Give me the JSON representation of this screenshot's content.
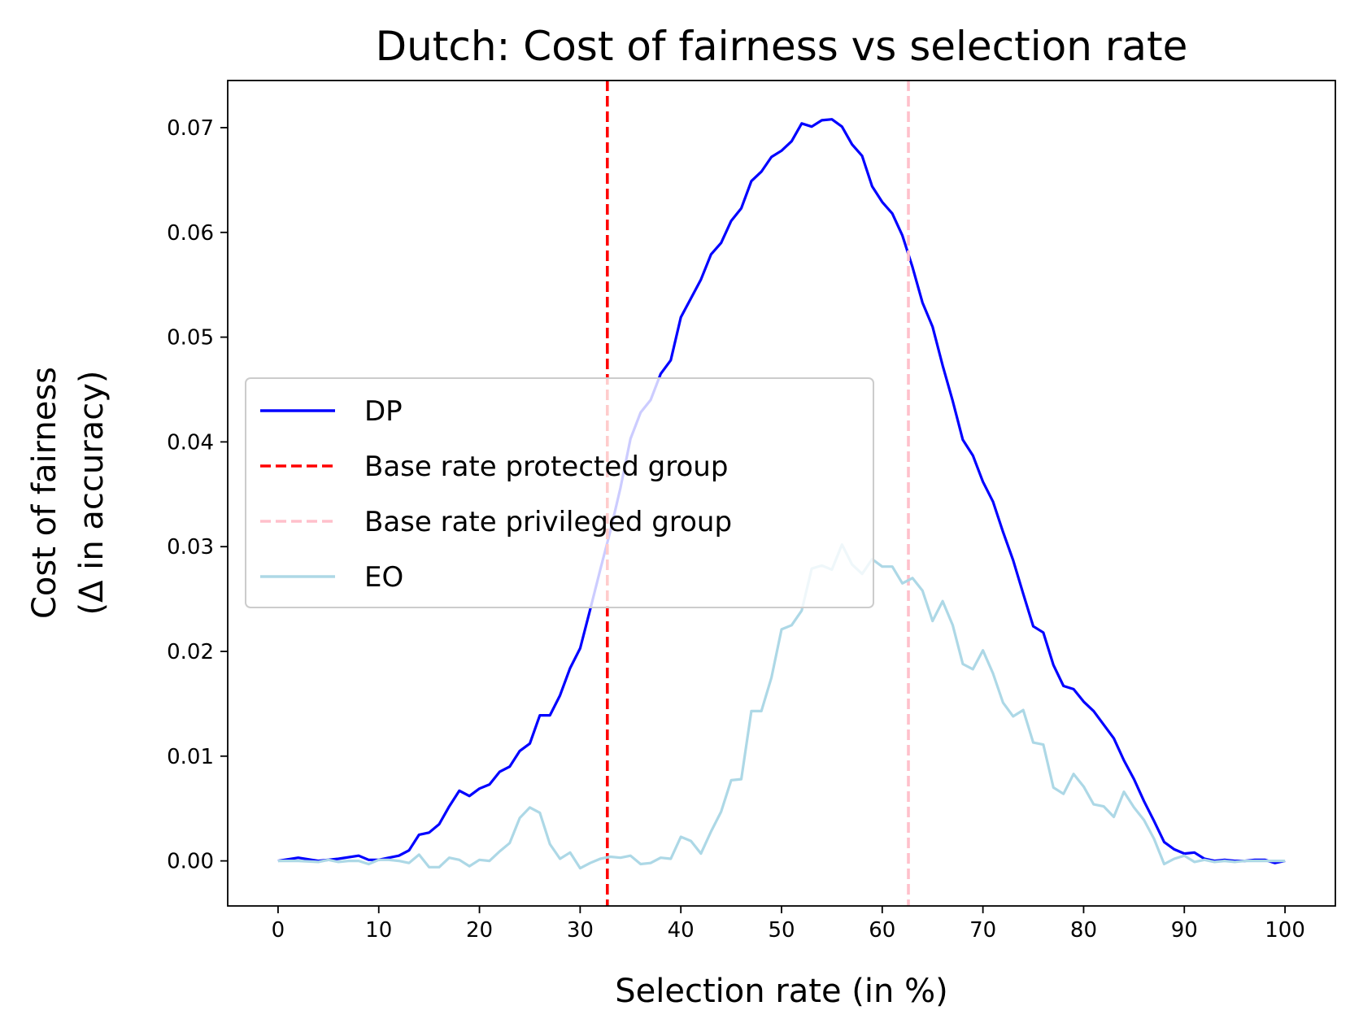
{
  "chart_data": {
    "type": "line",
    "title": "Dutch: Cost of fairness vs selection rate",
    "xlabel": "Selection rate (in %)",
    "ylabel_line1": "Cost of fairness",
    "ylabel_line2": "(Δ in accuracy)",
    "xlim": [
      -5,
      105
    ],
    "ylim": [
      -0.0043,
      0.0745
    ],
    "xticks": [
      0,
      10,
      20,
      30,
      40,
      50,
      60,
      70,
      80,
      90,
      100
    ],
    "xtick_labels": [
      "0",
      "10",
      "20",
      "30",
      "40",
      "50",
      "60",
      "70",
      "80",
      "90",
      "100"
    ],
    "yticks": [
      0.0,
      0.01,
      0.02,
      0.03,
      0.04,
      0.05,
      0.06,
      0.07
    ],
    "ytick_labels": [
      "0.00",
      "0.01",
      "0.02",
      "0.03",
      "0.04",
      "0.05",
      "0.06",
      "0.07"
    ],
    "legend_position": "center-left",
    "series": [
      {
        "name": "DP",
        "color": "#0000ff",
        "style": "solid",
        "x": [
          0,
          2,
          4,
          6,
          8,
          9,
          10,
          11,
          12,
          13,
          14,
          15,
          16,
          17,
          18,
          19,
          20,
          21,
          22,
          23,
          24,
          25,
          26,
          27,
          28,
          29,
          30,
          31,
          32,
          33,
          34,
          35,
          36,
          37,
          38,
          39,
          40,
          41,
          42,
          43,
          44,
          45,
          46,
          47,
          48,
          49,
          50,
          51,
          52,
          53,
          54,
          55,
          56,
          57,
          58,
          59,
          60,
          61,
          62,
          63,
          64,
          65,
          66,
          67,
          68,
          69,
          70,
          71,
          72,
          73,
          74,
          75,
          76,
          77,
          78,
          79,
          80,
          81,
          82,
          83,
          84,
          85,
          86,
          87,
          88,
          89,
          90,
          91,
          92,
          93,
          94,
          95,
          96,
          97,
          98,
          99,
          100
        ],
        "values": [
          0.0,
          0.0003,
          0.0,
          0.0002,
          0.0005,
          0.0001,
          0.0001,
          0.0003,
          0.0005,
          0.001,
          0.0025,
          0.0027,
          0.0035,
          0.0052,
          0.0067,
          0.0062,
          0.0069,
          0.0073,
          0.0085,
          0.009,
          0.0105,
          0.0112,
          0.0139,
          0.0139,
          0.0158,
          0.0184,
          0.0203,
          0.024,
          0.0278,
          0.0315,
          0.0356,
          0.0403,
          0.0428,
          0.044,
          0.0465,
          0.0478,
          0.0519,
          0.0537,
          0.0555,
          0.0579,
          0.059,
          0.0611,
          0.0623,
          0.0649,
          0.0658,
          0.0672,
          0.0678,
          0.0687,
          0.0704,
          0.0701,
          0.0707,
          0.0708,
          0.0701,
          0.0684,
          0.0673,
          0.0644,
          0.0629,
          0.0618,
          0.0597,
          0.0567,
          0.0533,
          0.051,
          0.0473,
          0.0439,
          0.0402,
          0.0387,
          0.0362,
          0.0343,
          0.0314,
          0.0287,
          0.0255,
          0.0224,
          0.0218,
          0.0187,
          0.0167,
          0.0164,
          0.0152,
          0.0143,
          0.013,
          0.0117,
          0.0096,
          0.0078,
          0.0057,
          0.0038,
          0.0018,
          0.0011,
          0.0007,
          0.0008,
          0.0002,
          0.0,
          0.0001,
          0.0,
          0.0,
          0.0001,
          0.0001,
          -0.0002,
          0.0
        ]
      },
      {
        "name": "EO",
        "color": "#add8e6",
        "style": "solid",
        "x": [
          0,
          2,
          4,
          5,
          6,
          7,
          8,
          9,
          10,
          11,
          12,
          13,
          14,
          15,
          16,
          17,
          18,
          19,
          20,
          21,
          22,
          23,
          24,
          25,
          26,
          27,
          28,
          29,
          30,
          31,
          32,
          33,
          34,
          35,
          36,
          37,
          38,
          39,
          40,
          41,
          42,
          43,
          44,
          45,
          46,
          47,
          48,
          49,
          50,
          51,
          52,
          53,
          54,
          55,
          56,
          57,
          58,
          59,
          60,
          61,
          62,
          63,
          64,
          65,
          66,
          67,
          68,
          69,
          70,
          71,
          72,
          73,
          74,
          75,
          76,
          77,
          78,
          79,
          80,
          81,
          82,
          83,
          84,
          85,
          86,
          87,
          88,
          89,
          90,
          91,
          92,
          93,
          94,
          95,
          96,
          97,
          98,
          99,
          100
        ],
        "values": [
          0.0,
          0.0,
          -0.0001,
          0.0001,
          -0.0001,
          0.0,
          0.0,
          -0.0003,
          0.0001,
          0.0001,
          0.0,
          -0.0002,
          0.0006,
          -0.0006,
          -0.0006,
          0.0003,
          0.0001,
          -0.0005,
          0.0001,
          0.0,
          0.0009,
          0.0017,
          0.0041,
          0.0051,
          0.0046,
          0.0016,
          0.0002,
          0.0008,
          -0.0007,
          -0.0002,
          0.0002,
          0.0004,
          0.0003,
          0.0005,
          -0.0003,
          -0.0002,
          0.0003,
          0.0002,
          0.0023,
          0.0019,
          0.0007,
          0.0028,
          0.0047,
          0.0077,
          0.0078,
          0.0143,
          0.0143,
          0.0175,
          0.0221,
          0.0225,
          0.0239,
          0.0279,
          0.0282,
          0.0278,
          0.0302,
          0.0283,
          0.0274,
          0.0288,
          0.0281,
          0.0281,
          0.0265,
          0.027,
          0.0258,
          0.0229,
          0.0248,
          0.0225,
          0.0188,
          0.0183,
          0.0201,
          0.0179,
          0.0151,
          0.0138,
          0.0144,
          0.0113,
          0.0111,
          0.007,
          0.0064,
          0.0083,
          0.0071,
          0.0054,
          0.0052,
          0.0042,
          0.0066,
          0.0051,
          0.0039,
          0.0021,
          -0.0003,
          0.0002,
          0.0005,
          -0.0001,
          0.0001,
          -0.0001,
          0.0,
          -0.0001,
          0.0,
          0.0,
          0.0,
          0.0,
          0.0
        ]
      }
    ],
    "vlines": [
      {
        "name": "Base rate protected group",
        "x": 32.7,
        "color": "#ff0000",
        "style": "dashed"
      },
      {
        "name": "Base rate privileged group",
        "x": 62.6,
        "color": "#ffc0cb",
        "style": "dashed"
      }
    ],
    "legend_order": [
      "DP",
      "Base rate protected group",
      "Base rate privileged group",
      "EO"
    ]
  }
}
